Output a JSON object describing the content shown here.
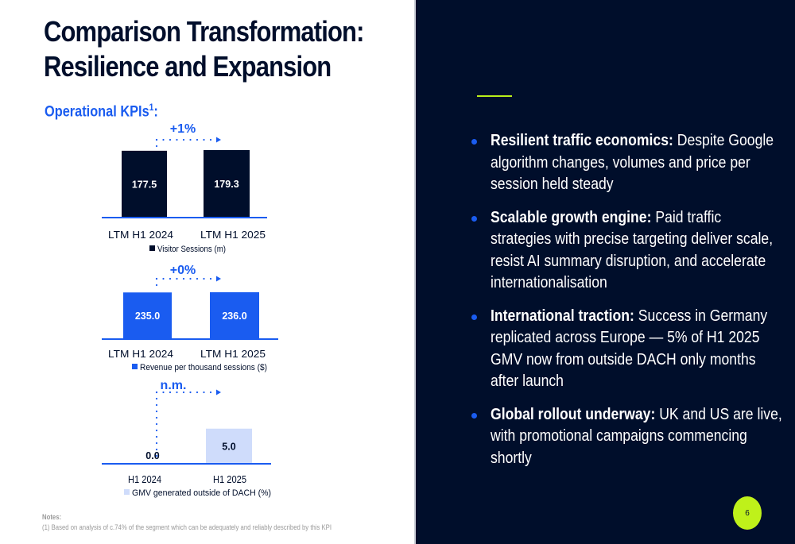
{
  "slide": {
    "title_line1": "Comparison Transformation:",
    "title_line2": "Resilience and Expansion",
    "subtitle": "Operational KPIs",
    "subtitle_footnote": "1",
    "subtitle_suffix": ":",
    "page_number": "6",
    "colors": {
      "navy": "#000e2b",
      "blue": "#1a5cf0",
      "light_blue": "#cfdcfb",
      "lime": "#bff11a"
    }
  },
  "notes": {
    "heading": "Notes:",
    "lines": [
      "(1) Based on analysis of c.74% of the segment which can be adequately and reliably described by this KPI"
    ]
  },
  "bullets": [
    {
      "bold": "Resilient traffic economics:",
      "text": " Despite Google algorithm changes, volumes and price per session held steady"
    },
    {
      "bold": "Scalable growth engine:",
      "text": " Paid traffic strategies with precise targeting deliver scale, resist AI summary disruption, and accelerate internationalisation"
    },
    {
      "bold": "International traction:",
      "text": " Success in Germany replicated across Europe — 5% of H1 2025 GMV now from outside DACH only months after launch"
    },
    {
      "bold": "Global rollout underway:",
      "text": " UK and US are live, with promotional campaigns commencing shortly"
    }
  ],
  "chart_data": [
    {
      "type": "bar",
      "title": "Visitor Sessions (m)",
      "categories": [
        "LTM H1 2024",
        "LTM H1 2025"
      ],
      "values": [
        177.5,
        179.3
      ],
      "value_labels": [
        "177.5",
        "179.3"
      ],
      "change_label": "+1%",
      "legend": "Visitor Sessions (m)",
      "legend_position": "bottom",
      "color": "#000e2b",
      "label_color": "#ffffff",
      "ylim": [
        0,
        179.3
      ]
    },
    {
      "type": "bar",
      "title": "Revenue per thousand sessions ($)",
      "categories": [
        "LTM H1 2024",
        "LTM H1 2025"
      ],
      "values": [
        235.0,
        236.0
      ],
      "value_labels": [
        "235.0",
        "236.0"
      ],
      "change_label": "+0%",
      "legend": "Revenue per thousand sessions ($)",
      "legend_position": "bottom",
      "color": "#1a5cf0",
      "label_color": "#ffffff",
      "ylim": [
        0,
        236.0
      ]
    },
    {
      "type": "bar",
      "title": "GMV generated outside of DACH (%)",
      "categories": [
        "H1 2024",
        "H1 2025"
      ],
      "values": [
        0.0,
        5.0
      ],
      "value_labels": [
        "0.0",
        "5.0"
      ],
      "change_label": "n.m.",
      "legend": "GMV generated outside of DACH (%)",
      "legend_position": "bottom",
      "color": "#cfdcfb",
      "label_color": "#000e2b",
      "ylim": [
        0,
        7.4
      ]
    }
  ]
}
